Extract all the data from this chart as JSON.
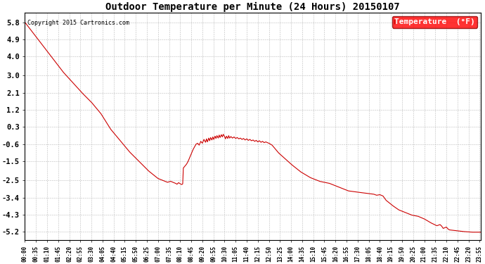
{
  "title": "Outdoor Temperature per Minute (24 Hours) 20150107",
  "copyright_text": "Copyright 2015 Cartronics.com",
  "legend_label": "Temperature  (°F)",
  "line_color": "#cc0000",
  "background_color": "#ffffff",
  "plot_background": "#ffffff",
  "grid_color": "#bbbbbb",
  "yticks": [
    5.8,
    4.9,
    4.0,
    3.0,
    2.1,
    1.2,
    0.3,
    -0.6,
    -1.5,
    -2.5,
    -3.4,
    -4.3,
    -5.2
  ],
  "ylim": [
    -5.65,
    6.3
  ],
  "xtick_interval_minutes": 35,
  "total_minutes": 1440,
  "data_profile": [
    [
      0,
      5.8
    ],
    [
      60,
      4.5
    ],
    [
      120,
      3.2
    ],
    [
      180,
      2.1
    ],
    [
      210,
      1.6
    ],
    [
      240,
      1.0
    ],
    [
      270,
      0.2
    ],
    [
      300,
      -0.4
    ],
    [
      330,
      -1.0
    ],
    [
      360,
      -1.5
    ],
    [
      390,
      -2.0
    ],
    [
      420,
      -2.4
    ],
    [
      450,
      -2.6
    ],
    [
      460,
      -2.55
    ],
    [
      475,
      -2.65
    ],
    [
      480,
      -2.7
    ],
    [
      485,
      -2.62
    ],
    [
      490,
      -2.68
    ],
    [
      495,
      -2.72
    ],
    [
      498,
      -2.68
    ],
    [
      500,
      -1.85
    ],
    [
      505,
      -1.75
    ],
    [
      510,
      -1.65
    ],
    [
      515,
      -1.5
    ],
    [
      520,
      -1.3
    ],
    [
      525,
      -1.1
    ],
    [
      530,
      -0.9
    ],
    [
      535,
      -0.75
    ],
    [
      540,
      -0.6
    ],
    [
      545,
      -0.55
    ],
    [
      550,
      -0.65
    ],
    [
      555,
      -0.45
    ],
    [
      560,
      -0.55
    ],
    [
      565,
      -0.35
    ],
    [
      570,
      -0.5
    ],
    [
      573,
      -0.32
    ],
    [
      576,
      -0.48
    ],
    [
      580,
      -0.28
    ],
    [
      583,
      -0.42
    ],
    [
      586,
      -0.25
    ],
    [
      590,
      -0.38
    ],
    [
      593,
      -0.22
    ],
    [
      596,
      -0.35
    ],
    [
      600,
      -0.18
    ],
    [
      603,
      -0.3
    ],
    [
      606,
      -0.15
    ],
    [
      610,
      -0.28
    ],
    [
      613,
      -0.12
    ],
    [
      616,
      -0.25
    ],
    [
      620,
      -0.1
    ],
    [
      623,
      -0.22
    ],
    [
      626,
      -0.08
    ],
    [
      630,
      -0.2
    ],
    [
      633,
      -0.32
    ],
    [
      636,
      -0.18
    ],
    [
      640,
      -0.3
    ],
    [
      643,
      -0.15
    ],
    [
      646,
      -0.28
    ],
    [
      650,
      -0.2
    ],
    [
      655,
      -0.28
    ],
    [
      660,
      -0.22
    ],
    [
      665,
      -0.3
    ],
    [
      670,
      -0.25
    ],
    [
      675,
      -0.32
    ],
    [
      680,
      -0.28
    ],
    [
      685,
      -0.35
    ],
    [
      690,
      -0.3
    ],
    [
      695,
      -0.38
    ],
    [
      700,
      -0.32
    ],
    [
      705,
      -0.4
    ],
    [
      710,
      -0.35
    ],
    [
      715,
      -0.42
    ],
    [
      720,
      -0.38
    ],
    [
      725,
      -0.45
    ],
    [
      730,
      -0.4
    ],
    [
      735,
      -0.48
    ],
    [
      740,
      -0.42
    ],
    [
      745,
      -0.5
    ],
    [
      750,
      -0.45
    ],
    [
      755,
      -0.52
    ],
    [
      760,
      -0.48
    ],
    [
      770,
      -0.55
    ],
    [
      780,
      -0.65
    ],
    [
      790,
      -0.85
    ],
    [
      800,
      -1.05
    ],
    [
      820,
      -1.35
    ],
    [
      840,
      -1.65
    ],
    [
      870,
      -2.05
    ],
    [
      900,
      -2.35
    ],
    [
      930,
      -2.55
    ],
    [
      960,
      -2.65
    ],
    [
      990,
      -2.85
    ],
    [
      1020,
      -3.05
    ],
    [
      1050,
      -3.12
    ],
    [
      1080,
      -3.18
    ],
    [
      1100,
      -3.22
    ],
    [
      1110,
      -3.28
    ],
    [
      1120,
      -3.25
    ],
    [
      1130,
      -3.32
    ],
    [
      1140,
      -3.55
    ],
    [
      1160,
      -3.82
    ],
    [
      1180,
      -4.05
    ],
    [
      1200,
      -4.18
    ],
    [
      1220,
      -4.32
    ],
    [
      1240,
      -4.38
    ],
    [
      1260,
      -4.52
    ],
    [
      1280,
      -4.72
    ],
    [
      1300,
      -4.88
    ],
    [
      1310,
      -4.82
    ],
    [
      1315,
      -4.9
    ],
    [
      1320,
      -5.02
    ],
    [
      1330,
      -4.95
    ],
    [
      1335,
      -5.05
    ],
    [
      1340,
      -5.1
    ],
    [
      1350,
      -5.12
    ],
    [
      1380,
      -5.18
    ],
    [
      1410,
      -5.22
    ],
    [
      1439,
      -5.22
    ]
  ]
}
